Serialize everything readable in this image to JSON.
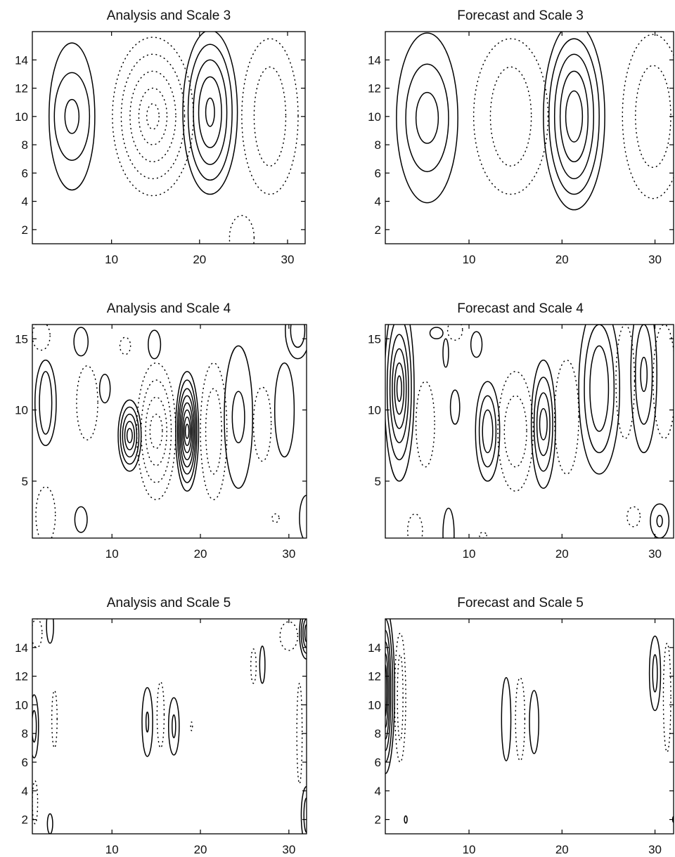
{
  "chart_data": [
    {
      "type": "contour",
      "title": "Analysis and Scale 3",
      "xlim": [
        1,
        32
      ],
      "ylim": [
        1,
        16
      ],
      "xticks": [
        10,
        20,
        30
      ],
      "yticks": [
        2,
        4,
        6,
        8,
        10,
        12,
        14
      ],
      "features": [
        {
          "sign": "positive",
          "cx": 5.5,
          "cy": 10,
          "rx": [
            2.6,
            2.0,
            0.8
          ],
          "ry": [
            5.2,
            3.1,
            1.2
          ]
        },
        {
          "sign": "negative",
          "cx": 14.7,
          "cy": 10,
          "rx": [
            4.6,
            3.6,
            2.6,
            1.6,
            0.7
          ],
          "ry": [
            5.6,
            4.4,
            3.2,
            2.0,
            0.9
          ]
        },
        {
          "sign": "positive",
          "cx": 21.2,
          "cy": 10.3,
          "rx": [
            3.1,
            2.5,
            1.9,
            1.3,
            0.5
          ],
          "ry": [
            5.8,
            4.8,
            3.7,
            2.5,
            1.0
          ]
        },
        {
          "sign": "negative",
          "cx": 28,
          "cy": 10,
          "rx": [
            3.2,
            1.8
          ],
          "ry": [
            5.5,
            3.5
          ]
        },
        {
          "sign": "negative",
          "cx": 24.8,
          "cy": 1.4,
          "rx": [
            1.4
          ],
          "ry": [
            1.6
          ]
        }
      ]
    },
    {
      "type": "contour",
      "title": "Forecast and Scale 3",
      "xlim": [
        1,
        32
      ],
      "ylim": [
        1,
        16
      ],
      "xticks": [
        10,
        20,
        30
      ],
      "yticks": [
        2,
        4,
        6,
        8,
        10,
        12,
        14
      ],
      "features": [
        {
          "sign": "positive",
          "cx": 5.5,
          "cy": 9.9,
          "rx": [
            3.3,
            2.3,
            1.2
          ],
          "ry": [
            6.0,
            3.8,
            1.8
          ]
        },
        {
          "sign": "negative",
          "cx": 14.5,
          "cy": 10,
          "rx": [
            4.0,
            2.2
          ],
          "ry": [
            5.5,
            3.5
          ]
        },
        {
          "sign": "positive",
          "cx": 21.3,
          "cy": 10,
          "rx": [
            3.3,
            2.7,
            2.1,
            1.5,
            0.9
          ],
          "ry": [
            6.6,
            5.5,
            4.4,
            3.2,
            1.8
          ]
        },
        {
          "sign": "negative",
          "cx": 29.8,
          "cy": 10,
          "rx": [
            3.3,
            1.9
          ],
          "ry": [
            5.8,
            3.6
          ]
        }
      ]
    },
    {
      "type": "contour",
      "title": "Analysis and Scale 4",
      "xlim": [
        1,
        32
      ],
      "ylim": [
        1,
        16
      ],
      "xticks": [
        10,
        20,
        30
      ],
      "yticks": [
        5,
        10,
        15
      ],
      "features": [
        {
          "sign": "negative",
          "cx": 2,
          "cy": 15.2,
          "rx": [
            1.0
          ],
          "ry": [
            1.0
          ]
        },
        {
          "sign": "positive",
          "cx": 6.5,
          "cy": 14.8,
          "rx": [
            0.8
          ],
          "ry": [
            1.0
          ]
        },
        {
          "sign": "negative",
          "cx": 11.5,
          "cy": 14.5,
          "rx": [
            0.6
          ],
          "ry": [
            0.6
          ]
        },
        {
          "sign": "positive",
          "cx": 14.8,
          "cy": 14.6,
          "rx": [
            0.7
          ],
          "ry": [
            1.0
          ]
        },
        {
          "sign": "positive",
          "cx": 2.5,
          "cy": 10.5,
          "rx": [
            1.2,
            0.7
          ],
          "ry": [
            3.0,
            2.2
          ]
        },
        {
          "sign": "negative",
          "cx": 7.2,
          "cy": 10.5,
          "rx": [
            1.2
          ],
          "ry": [
            2.6
          ]
        },
        {
          "sign": "positive",
          "cx": 9.2,
          "cy": 11.5,
          "rx": [
            0.6
          ],
          "ry": [
            1.0
          ]
        },
        {
          "sign": "positive",
          "cx": 12,
          "cy": 8.2,
          "rx": [
            1.3,
            1.05,
            0.8,
            0.55,
            0.3
          ],
          "ry": [
            2.5,
            2.0,
            1.5,
            1.0,
            0.5
          ]
        },
        {
          "sign": "negative",
          "cx": 15,
          "cy": 8.5,
          "rx": [
            2.2,
            1.7,
            1.2,
            0.7
          ],
          "ry": [
            4.8,
            3.6,
            2.4,
            1.2
          ]
        },
        {
          "sign": "positive",
          "cx": 18.5,
          "cy": 8.5,
          "rx": [
            1.3,
            1.1,
            0.95,
            0.8,
            0.65,
            0.5,
            0.35,
            0.2
          ],
          "ry": [
            4.2,
            3.6,
            3.0,
            2.5,
            2.0,
            1.5,
            1.0,
            0.5
          ]
        },
        {
          "sign": "negative",
          "cx": 21.5,
          "cy": 8.5,
          "rx": [
            1.5,
            0.9
          ],
          "ry": [
            4.8,
            3.0
          ]
        },
        {
          "sign": "positive",
          "cx": 24.3,
          "cy": 9.5,
          "rx": [
            1.6,
            0.7
          ],
          "ry": [
            5.0,
            1.8
          ]
        },
        {
          "sign": "negative",
          "cx": 27,
          "cy": 9.0,
          "rx": [
            1.0
          ],
          "ry": [
            2.6
          ]
        },
        {
          "sign": "positive",
          "cx": 29.5,
          "cy": 10.0,
          "rx": [
            1.1
          ],
          "ry": [
            3.3
          ]
        },
        {
          "sign": "positive",
          "cx": 31,
          "cy": 15.6,
          "rx": [
            1.4,
            0.8
          ],
          "ry": [
            2.0,
            1.2
          ]
        },
        {
          "sign": "positive",
          "cx": 6.5,
          "cy": 2.3,
          "rx": [
            0.7
          ],
          "ry": [
            0.9
          ]
        },
        {
          "sign": "negative",
          "cx": 2.5,
          "cy": 2.6,
          "rx": [
            1.1
          ],
          "ry": [
            2.0
          ]
        },
        {
          "sign": "negative",
          "cx": 28.5,
          "cy": 2.4,
          "rx": [
            0.4
          ],
          "ry": [
            0.3
          ]
        },
        {
          "sign": "positive",
          "cx": 32,
          "cy": 2.4,
          "rx": [
            0.8
          ],
          "ry": [
            1.6
          ]
        }
      ]
    },
    {
      "type": "contour",
      "title": "Forecast and Scale 4",
      "xlim": [
        1,
        32
      ],
      "ylim": [
        1,
        16
      ],
      "xticks": [
        10,
        20,
        30
      ],
      "yticks": [
        5,
        10,
        15
      ],
      "features": [
        {
          "sign": "positive",
          "cx": 2.5,
          "cy": 11.5,
          "rx": [
            1.6,
            1.3,
            1.0,
            0.75,
            0.5,
            0.25
          ],
          "ry": [
            6.5,
            5.0,
            3.8,
            2.8,
            1.8,
            0.9
          ]
        },
        {
          "sign": "negative",
          "cx": 5.3,
          "cy": 9.0,
          "rx": [
            1.0
          ],
          "ry": [
            3.0
          ]
        },
        {
          "sign": "positive",
          "cx": 6.5,
          "cy": 15.4,
          "rx": [
            0.7
          ],
          "ry": [
            0.4
          ]
        },
        {
          "sign": "positive",
          "cx": 7.5,
          "cy": 14.0,
          "rx": [
            0.3
          ],
          "ry": [
            1.0
          ]
        },
        {
          "sign": "positive",
          "cx": 10.8,
          "cy": 14.6,
          "rx": [
            0.6
          ],
          "ry": [
            0.9
          ]
        },
        {
          "sign": "negative",
          "cx": 8.5,
          "cy": 15.6,
          "rx": [
            0.8
          ],
          "ry": [
            0.7
          ]
        },
        {
          "sign": "positive",
          "cx": 8.5,
          "cy": 10.2,
          "rx": [
            0.5
          ],
          "ry": [
            1.2
          ]
        },
        {
          "sign": "positive",
          "cx": 12,
          "cy": 8.5,
          "rx": [
            1.3,
            0.9,
            0.55
          ],
          "ry": [
            3.5,
            2.5,
            1.5
          ]
        },
        {
          "sign": "negative",
          "cx": 15,
          "cy": 8.5,
          "rx": [
            1.9,
            1.2
          ],
          "ry": [
            4.2,
            2.5
          ]
        },
        {
          "sign": "positive",
          "cx": 18,
          "cy": 9.0,
          "rx": [
            1.3,
            1.0,
            0.7,
            0.4
          ],
          "ry": [
            4.5,
            3.3,
            2.2,
            1.1
          ]
        },
        {
          "sign": "negative",
          "cx": 20.5,
          "cy": 9.5,
          "rx": [
            1.3
          ],
          "ry": [
            4.0
          ]
        },
        {
          "sign": "positive",
          "cx": 24,
          "cy": 11.5,
          "rx": [
            2.2,
            1.6,
            1.0
          ],
          "ry": [
            6.0,
            4.5,
            3.0
          ]
        },
        {
          "sign": "negative",
          "cx": 26.8,
          "cy": 12.0,
          "rx": [
            1.0
          ],
          "ry": [
            4.0
          ]
        },
        {
          "sign": "positive",
          "cx": 28.8,
          "cy": 12.5,
          "rx": [
            1.4,
            0.9,
            0.35
          ],
          "ry": [
            5.5,
            3.5,
            1.2
          ]
        },
        {
          "sign": "negative",
          "cx": 31,
          "cy": 12.0,
          "rx": [
            1.2
          ],
          "ry": [
            4.0
          ]
        },
        {
          "sign": "positive",
          "cx": 7.8,
          "cy": 1.3,
          "rx": [
            0.6
          ],
          "ry": [
            1.8
          ]
        },
        {
          "sign": "negative",
          "cx": 4.2,
          "cy": 1.5,
          "rx": [
            0.8
          ],
          "ry": [
            1.2
          ]
        },
        {
          "sign": "negative",
          "cx": 11.5,
          "cy": 1.2,
          "rx": [
            0.4
          ],
          "ry": [
            0.2
          ]
        },
        {
          "sign": "negative",
          "cx": 27.7,
          "cy": 2.5,
          "rx": [
            0.7
          ],
          "ry": [
            0.7
          ]
        },
        {
          "sign": "positive",
          "cx": 30.5,
          "cy": 2.2,
          "rx": [
            1.0,
            0.3
          ],
          "ry": [
            1.2,
            0.4
          ]
        }
      ]
    },
    {
      "type": "contour",
      "title": "Analysis and Scale 5",
      "xlim": [
        1,
        32
      ],
      "ylim": [
        1,
        16
      ],
      "xticks": [
        10,
        20,
        30
      ],
      "yticks": [
        2,
        4,
        6,
        8,
        10,
        12,
        14
      ],
      "features": [
        {
          "sign": "positive",
          "cx": 1.2,
          "cy": 8.5,
          "rx": [
            0.5,
            0.25
          ],
          "ry": [
            2.2,
            1.1
          ]
        },
        {
          "sign": "negative",
          "cx": 3.5,
          "cy": 9.0,
          "rx": [
            0.3
          ],
          "ry": [
            2.0
          ]
        },
        {
          "sign": "positive",
          "cx": 3,
          "cy": 15.5,
          "rx": [
            0.4
          ],
          "ry": [
            1.2
          ]
        },
        {
          "sign": "negative",
          "cx": 1.5,
          "cy": 15.0,
          "rx": [
            0.6
          ],
          "ry": [
            1.0
          ]
        },
        {
          "sign": "positive",
          "cx": 3,
          "cy": 1.7,
          "rx": [
            0.3
          ],
          "ry": [
            0.7
          ]
        },
        {
          "sign": "negative",
          "cx": 1.3,
          "cy": 3.2,
          "rx": [
            0.3
          ],
          "ry": [
            1.5
          ]
        },
        {
          "sign": "positive",
          "cx": 14,
          "cy": 8.8,
          "rx": [
            0.6,
            0.15
          ],
          "ry": [
            2.4,
            0.7
          ]
        },
        {
          "sign": "negative",
          "cx": 15.5,
          "cy": 9.3,
          "rx": [
            0.4
          ],
          "ry": [
            2.3
          ]
        },
        {
          "sign": "positive",
          "cx": 17,
          "cy": 8.5,
          "rx": [
            0.6,
            0.2
          ],
          "ry": [
            2.0,
            0.8
          ]
        },
        {
          "sign": "negative",
          "cx": 19,
          "cy": 8.5,
          "rx": [
            0.1
          ],
          "ry": [
            0.3
          ]
        },
        {
          "sign": "negative",
          "cx": 26,
          "cy": 12.7,
          "rx": [
            0.3
          ],
          "ry": [
            1.2
          ]
        },
        {
          "sign": "positive",
          "cx": 27,
          "cy": 12.8,
          "rx": [
            0.3
          ],
          "ry": [
            1.3
          ]
        },
        {
          "sign": "negative",
          "cx": 30,
          "cy": 14.8,
          "rx": [
            1.0
          ],
          "ry": [
            1.0
          ]
        },
        {
          "sign": "positive",
          "cx": 32,
          "cy": 15.0,
          "rx": [
            0.8,
            0.6,
            0.4,
            0.2
          ],
          "ry": [
            1.8,
            1.4,
            1.0,
            0.6
          ]
        },
        {
          "sign": "negative",
          "cx": 31.2,
          "cy": 8.0,
          "rx": [
            0.3
          ],
          "ry": [
            3.5
          ]
        },
        {
          "sign": "positive",
          "cx": 32,
          "cy": 2.3,
          "rx": [
            0.6,
            0.3
          ],
          "ry": [
            2.0,
            1.2
          ]
        }
      ]
    },
    {
      "type": "contour",
      "title": "Forecast and Scale 5",
      "xlim": [
        1,
        32
      ],
      "ylim": [
        1,
        16
      ],
      "xticks": [
        10,
        20,
        30
      ],
      "yticks": [
        2,
        4,
        6,
        8,
        10,
        12,
        14
      ],
      "features": [
        {
          "sign": "positive",
          "cx": 1.0,
          "cy": 11.0,
          "rx": [
            1.0,
            0.8,
            0.6,
            0.45,
            0.3,
            0.15
          ],
          "ry": [
            5.8,
            5.0,
            4.2,
            3.4,
            2.6,
            1.8
          ]
        },
        {
          "sign": "negative",
          "cx": 2.6,
          "cy": 10.5,
          "rx": [
            0.6,
            0.3
          ],
          "ry": [
            4.5,
            3.0
          ]
        },
        {
          "sign": "positive",
          "cx": 3.2,
          "cy": 2.0,
          "rx": [
            0.15
          ],
          "ry": [
            0.25
          ]
        },
        {
          "sign": "positive",
          "cx": 14,
          "cy": 9.0,
          "rx": [
            0.5
          ],
          "ry": [
            2.9
          ]
        },
        {
          "sign": "negative",
          "cx": 15.5,
          "cy": 9.0,
          "rx": [
            0.5
          ],
          "ry": [
            2.9
          ]
        },
        {
          "sign": "positive",
          "cx": 17,
          "cy": 8.8,
          "rx": [
            0.5
          ],
          "ry": [
            2.2
          ]
        },
        {
          "sign": "positive",
          "cx": 30,
          "cy": 12.2,
          "rx": [
            0.6,
            0.25
          ],
          "ry": [
            2.6,
            1.3
          ]
        },
        {
          "sign": "negative",
          "cx": 31.3,
          "cy": 10.5,
          "rx": [
            0.4
          ],
          "ry": [
            3.8
          ]
        },
        {
          "sign": "positive",
          "cx": 32,
          "cy": 2.0,
          "rx": [
            0.1
          ],
          "ry": [
            0.2
          ]
        }
      ]
    }
  ]
}
